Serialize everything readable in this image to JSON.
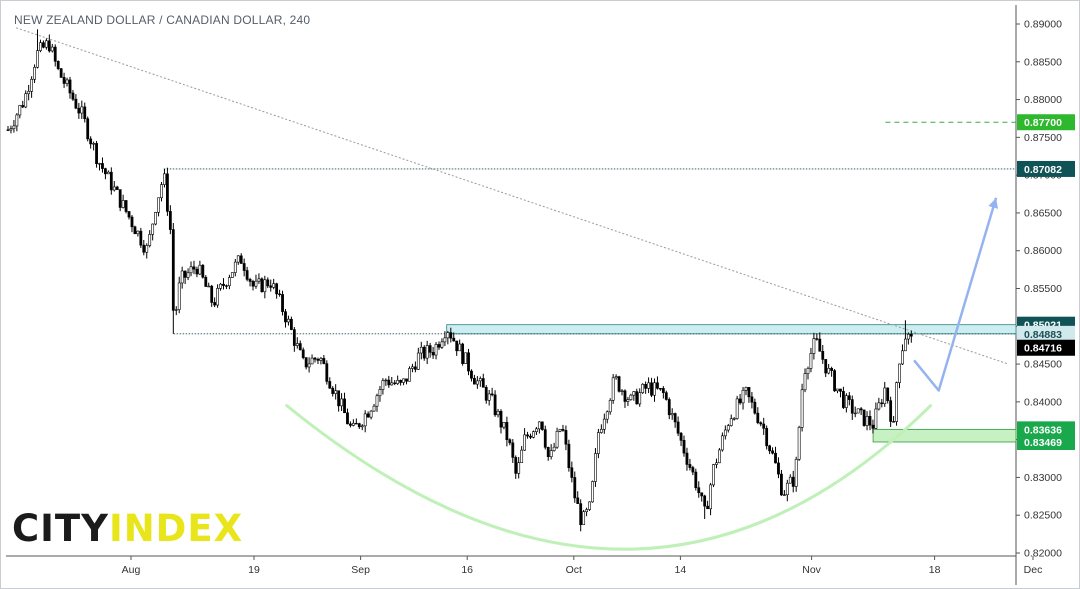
{
  "title": "NEW ZEALAND DOLLAR / CANADIAN DOLLAR, 240",
  "logo": {
    "part1": "CITY",
    "part2": "INDEX"
  },
  "colors": {
    "bull": "#ffffff",
    "bear": "#000000",
    "wick": "#000000",
    "resistance_zone": "#cdeef1",
    "support_zone": "#c7f1c2",
    "target_tag": "#2eb82e",
    "level_tag": "#0f5357",
    "zone_tag": "#19a84c",
    "last_tag": "#000000",
    "arrow": "#95b3f0",
    "arc": "#bff0b8",
    "trendline": "#9a9a9a"
  },
  "chart_data": {
    "type": "candlestick",
    "title": "NEW ZEALAND DOLLAR / CANADIAN DOLLAR, 240",
    "timeframe": "240",
    "ylim": [
      0.82,
      0.8925
    ],
    "xlim_days": [
      0,
      122
    ],
    "y_ticks": [
      0.82,
      0.825,
      0.83,
      0.835,
      0.84,
      0.845,
      0.85,
      0.855,
      0.86,
      0.865,
      0.87,
      0.875,
      0.88,
      0.885,
      0.89
    ],
    "y_tick_labels": [
      "0.82000",
      "0.82500",
      "0.83000",
      "0.83500",
      "0.84000",
      "0.84500",
      "0.85000",
      "0.85500",
      "0.86000",
      "0.86500",
      "0.87000",
      "0.87500",
      "0.88000",
      "0.88500",
      "0.89000"
    ],
    "x_ticks": [
      {
        "label": "Aug",
        "day": 15
      },
      {
        "label": "19",
        "day": 30
      },
      {
        "label": "Sep",
        "day": 43
      },
      {
        "label": "16",
        "day": 56
      },
      {
        "label": "Oct",
        "day": 69
      },
      {
        "label": "14",
        "day": 82
      },
      {
        "label": "Nov",
        "day": 98
      },
      {
        "label": "18",
        "day": 113
      },
      {
        "label": "Dec",
        "day": 125
      }
    ],
    "price_path": [
      [
        0,
        0.876
      ],
      [
        2,
        0.88
      ],
      [
        3.5,
        0.886
      ],
      [
        5,
        0.8875
      ],
      [
        6,
        0.884
      ],
      [
        7,
        0.882
      ],
      [
        9,
        0.878
      ],
      [
        11,
        0.872
      ],
      [
        13,
        0.868
      ],
      [
        15,
        0.864
      ],
      [
        17,
        0.86
      ],
      [
        18,
        0.866
      ],
      [
        19,
        0.87
      ],
      [
        20,
        0.861
      ],
      [
        20.2,
        0.85
      ],
      [
        21,
        0.856
      ],
      [
        23,
        0.858
      ],
      [
        25,
        0.853
      ],
      [
        27,
        0.857
      ],
      [
        28.5,
        0.859
      ],
      [
        30,
        0.855
      ],
      [
        32,
        0.856
      ],
      [
        34,
        0.851
      ],
      [
        36,
        0.845
      ],
      [
        38,
        0.846
      ],
      [
        40,
        0.841
      ],
      [
        42,
        0.836
      ],
      [
        44,
        0.839
      ],
      [
        46,
        0.843
      ],
      [
        48,
        0.842
      ],
      [
        50,
        0.846
      ],
      [
        52,
        0.847
      ],
      [
        53.5,
        0.85
      ],
      [
        55,
        0.847
      ],
      [
        57,
        0.843
      ],
      [
        59,
        0.84
      ],
      [
        61,
        0.835
      ],
      [
        62,
        0.83
      ],
      [
        63,
        0.835
      ],
      [
        65,
        0.838
      ],
      [
        66,
        0.832
      ],
      [
        67.5,
        0.837
      ],
      [
        69,
        0.828
      ],
      [
        70,
        0.824
      ],
      [
        71,
        0.826
      ],
      [
        72,
        0.836
      ],
      [
        74,
        0.843
      ],
      [
        76,
        0.84
      ],
      [
        78,
        0.842
      ],
      [
        80,
        0.841
      ],
      [
        82,
        0.835
      ],
      [
        84,
        0.829
      ],
      [
        85,
        0.825
      ],
      [
        86,
        0.831
      ],
      [
        88,
        0.838
      ],
      [
        90,
        0.841
      ],
      [
        92,
        0.837
      ],
      [
        93.5,
        0.832
      ],
      [
        94.5,
        0.828
      ],
      [
        96,
        0.83
      ],
      [
        97,
        0.844
      ],
      [
        98.5,
        0.848
      ],
      [
        100,
        0.844
      ],
      [
        102,
        0.84
      ],
      [
        104,
        0.838
      ],
      [
        105.5,
        0.837
      ],
      [
        107,
        0.842
      ],
      [
        108,
        0.8365
      ],
      [
        108.5,
        0.845
      ],
      [
        109.5,
        0.849
      ],
      [
        110.5,
        0.8475
      ]
    ],
    "pivot_low": {
      "day": 20.2,
      "price": 0.849
    },
    "pivot_high": {
      "day": 19,
      "price": 0.87082
    },
    "levels": [
      {
        "name": "target",
        "price": 0.877,
        "label": "0.87700",
        "style": "dashed",
        "from_day": 107
      },
      {
        "name": "prior-high",
        "price": 0.87082,
        "label": "0.87082",
        "style": "dotted",
        "from_day": 19
      },
      {
        "name": "resistance-top",
        "price": 0.85021,
        "label": "0.85021",
        "from_day": 53.5
      },
      {
        "name": "resistance-bottom",
        "price": 0.849,
        "label": "0.84883",
        "from_day": 20.2
      },
      {
        "name": "last-price",
        "price": 0.84716,
        "label": "0.84716"
      },
      {
        "name": "support-top",
        "price": 0.83636,
        "label": "0.83636",
        "from_day": 105.5
      },
      {
        "name": "support-bottom",
        "price": 0.83469,
        "label": "0.83469",
        "from_day": 105.5
      }
    ],
    "trendline": [
      [
        1,
        0.8895
      ],
      [
        122,
        0.845
      ]
    ],
    "projection_arrow": [
      [
        110.5,
        0.8455
      ],
      [
        113.5,
        0.8415
      ],
      [
        120.5,
        0.867
      ]
    ],
    "rounding_bottom": [
      [
        34,
        0.8395
      ],
      [
        77,
        0.8205
      ],
      [
        112.5,
        0.8395
      ]
    ]
  }
}
